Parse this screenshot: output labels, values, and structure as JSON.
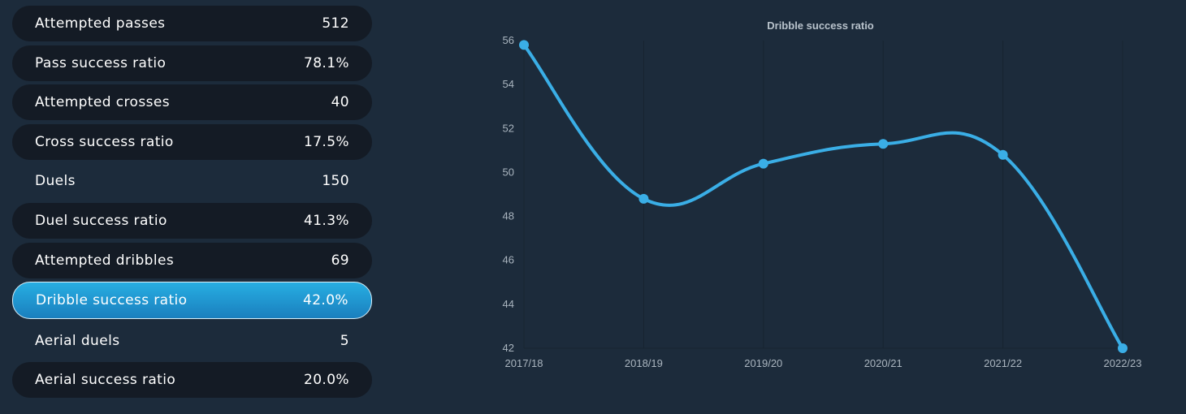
{
  "stats": [
    {
      "label": "Attempted passes",
      "value": "512",
      "style": "dark"
    },
    {
      "label": "Pass success ratio",
      "value": "78.1%",
      "style": "dark"
    },
    {
      "label": "Attempted crosses",
      "value": "40",
      "style": "dark"
    },
    {
      "label": "Cross success ratio",
      "value": "17.5%",
      "style": "dark"
    },
    {
      "label": "Duels",
      "value": "150",
      "style": "plain"
    },
    {
      "label": "Duel success ratio",
      "value": "41.3%",
      "style": "dark"
    },
    {
      "label": "Attempted dribbles",
      "value": "69",
      "style": "dark"
    },
    {
      "label": "Dribble success ratio",
      "value": "42.0%",
      "style": "active"
    },
    {
      "label": "Aerial duels",
      "value": "5",
      "style": "plain"
    },
    {
      "label": "Aerial success ratio",
      "value": "20.0%",
      "style": "dark"
    }
  ],
  "chart_data": {
    "type": "line",
    "title": "Dribble success ratio",
    "x": [
      "2017/18",
      "2018/19",
      "2019/20",
      "2020/21",
      "2021/22",
      "2022/23"
    ],
    "values": [
      55.8,
      48.8,
      50.4,
      51.3,
      50.8,
      42.0
    ],
    "ylim": [
      42,
      56
    ],
    "yticks": [
      "42",
      "44",
      "46",
      "48",
      "50",
      "52",
      "54",
      "56"
    ],
    "grid": true,
    "colors": {
      "line": "#3aaee6",
      "title": "#b9c3cc",
      "ticks": "#aab5bf",
      "grid": "#172430"
    }
  }
}
